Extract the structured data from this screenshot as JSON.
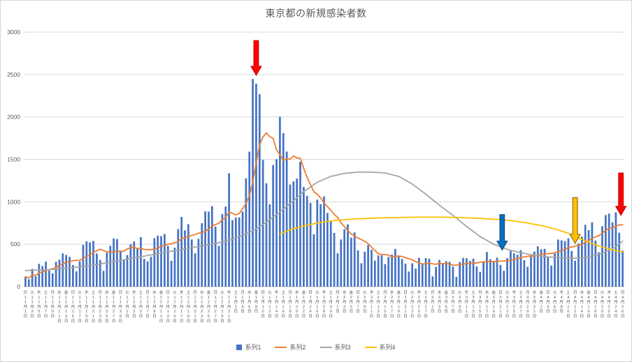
{
  "chart_data": {
    "type": "bar",
    "title": "東京都の新規感染者数",
    "ylim": [
      0,
      3000
    ],
    "y_ticks": [
      0,
      500,
      1000,
      1500,
      2000,
      2500,
      3000
    ],
    "n_days": 177,
    "x_tick_every": 2,
    "grid": true,
    "legend_position": "bottom",
    "x_tick_labels": [
      "日11月1日",
      "火11月3日",
      "木11月5日",
      "土11月7日",
      "月11月9日",
      "水11月11日",
      "金11月13日",
      "日11月15日",
      "火11月17日",
      "木11月19日",
      "土11月21日",
      "月11月23日",
      "水11月25日",
      "金11月27日",
      "日11月29日",
      "火12月1日",
      "木12月3日",
      "土12月5日",
      "月12月7日",
      "水12月9日",
      "金12月11日",
      "日12月13日",
      "火12月15日",
      "木12月17日",
      "土12月19日",
      "月12月21日",
      "水12月23日",
      "金12月25日",
      "日12月27日",
      "火12月29日",
      "木12月31日",
      "土1月2日",
      "月1月4日",
      "水1月6日",
      "金1月8日",
      "日1月10日",
      "火1月12日",
      "木1月14日",
      "土1月16日",
      "月1月18日",
      "水1月20日",
      "金1月22日",
      "日1月24日",
      "火1月26日",
      "木1月28日",
      "土1月30日",
      "月2月1日",
      "水2月3日",
      "金2月5日",
      "日2月7日",
      "火2月9日",
      "木2月11日",
      "土2月13日",
      "月2月15日",
      "水2月17日",
      "金2月19日",
      "日2月21日",
      "火2月23日",
      "木2月25日",
      "土2月27日",
      "月3月1日",
      "水3月3日",
      "金3月5日",
      "日3月7日",
      "火3月9日",
      "木3月11日",
      "土3月13日",
      "月3月15日",
      "水3月17日",
      "金3月19日",
      "日3月21日",
      "火3月23日",
      "木3月25日",
      "土3月27日",
      "月3月29日",
      "水3月31日",
      "金4月2日",
      "日4月4日",
      "火4月6日",
      "木4月8日",
      "土4月10日",
      "月4月12日",
      "水4月14日",
      "金4月16日",
      "日4月18日",
      "火4月20日",
      "木4月22日",
      "土4月24日",
      "月4月26日"
    ],
    "series": [
      {
        "name": "系列1",
        "type": "bar",
        "color": "#4472C4",
        "values": [
          116,
          87,
          209,
          122,
          269,
          242,
          294,
          189,
          157,
          293,
          317,
          393,
          374,
          352,
          255,
          180,
          298,
          493,
          534,
          522,
          539,
          391,
          314,
          186,
          401,
          481,
          570,
          561,
          418,
          311,
          372,
          500,
          533,
          449,
          584,
          327,
          299,
          352,
          572,
          602,
          595,
          621,
          480,
          305,
          460,
          678,
          822,
          664,
          736,
          556,
          392,
          563,
          748,
          888,
          884,
          949,
          708,
          481,
          856,
          944,
          1337,
          783,
          814,
          816,
          884,
          1278,
          1591,
          2447,
          2392,
          2268,
          1494,
          1219,
          970,
          1433,
          1502,
          2001,
          1809,
          1592,
          1204,
          1240,
          1274,
          1471,
          1175,
          1070,
          986,
          618,
          1026,
          973,
          1064,
          868,
          769,
          633,
          393,
          556,
          676,
          734,
          577,
          639,
          429,
          276,
          412,
          491,
          434,
          307,
          369,
          371,
          266,
          350,
          378,
          445,
          353,
          327,
          272,
          178,
          275,
          213,
          340,
          270,
          337,
          329,
          121,
          232,
          316,
          279,
          301,
          293,
          237,
          116,
          290,
          340,
          335,
          304,
          330,
          239,
          175,
          300,
          409,
          323,
          303,
          342,
          256,
          187,
          337,
          420,
          394,
          376,
          430,
          313,
          234,
          364,
          414,
          475,
          440,
          446,
          355,
          249,
          399,
          555,
          545,
          537,
          570,
          421,
          306,
          510,
          591,
          729,
          667,
          759,
          543,
          405,
          711,
          843,
          861,
          759,
          876,
          635,
          425
        ]
      },
      {
        "name": "系列2",
        "type": "line",
        "color": "#ED7D31",
        "values": [
          116,
          102,
          137,
          134,
          161,
          174,
          191,
          202,
          212,
          224,
          252,
          269,
          288,
          296,
          306,
          309,
          310,
          335,
          355,
          376,
          403,
          422,
          442,
          426,
          412,
          405,
          412,
          415,
          419,
          418,
          445,
          459,
          466,
          449,
          452,
          439,
          438,
          435,
          445,
          455,
          476,
          481,
          503,
          504,
          519,
          534,
          566,
          576,
          592,
          603,
          615,
          630,
          640,
          650,
          681,
          711,
          733,
          746,
          788,
          816,
          880,
          865,
          846,
          862,
          919,
          979,
          1072,
          1230,
          1460,
          1668,
          1765,
          1813,
          1769,
          1746,
          1611,
          1555,
          1490,
          1504,
          1502,
          1540,
          1517,
          1513,
          1395,
          1289,
          1203,
          1119,
          1089,
          1046,
          987,
          944,
          901,
          850,
          818,
          751,
          708,
          661,
          620,
          601,
          572,
          555,
          535,
          508,
          465,
          427,
          388,
          380,
          379,
          370,
          354,
          355,
          362,
          356,
          342,
          329,
          318,
          295,
          280,
          268,
          269,
          277,
          269,
          263,
          278,
          269,
          274,
          267,
          254,
          253,
          262,
          265,
          273,
          274,
          279,
          279,
          288,
          289,
          299,
          297,
          297,
          299,
          301,
          303,
          308,
          310,
          320,
          330,
          343,
          351,
          358,
          362,
          361,
          372,
          381,
          384,
          390,
          392,
          397,
          417,
          427,
          441,
          459,
          468,
          476,
          492,
          497,
          523,
          542,
          569,
          586,
          601,
          629,
          665,
          684,
          697,
          714,
          727,
          730
        ]
      },
      {
        "name": "系列3",
        "type": "line",
        "color": "#A5A5A5",
        "points": [
          [
            0,
            190
          ],
          [
            7,
            200
          ],
          [
            14,
            225
          ],
          [
            21,
            260
          ],
          [
            28,
            310
          ],
          [
            35,
            360
          ],
          [
            42,
            410
          ],
          [
            49,
            460
          ],
          [
            56,
            510
          ],
          [
            61,
            560
          ],
          [
            65,
            620
          ],
          [
            68,
            680
          ],
          [
            71,
            760
          ],
          [
            75,
            880
          ],
          [
            78,
            980
          ],
          [
            82,
            1120
          ],
          [
            86,
            1230
          ],
          [
            90,
            1300
          ],
          [
            94,
            1335
          ],
          [
            98,
            1350
          ],
          [
            102,
            1350
          ],
          [
            106,
            1340
          ],
          [
            110,
            1300
          ],
          [
            114,
            1210
          ],
          [
            118,
            1090
          ],
          [
            122,
            960
          ],
          [
            126,
            840
          ],
          [
            130,
            710
          ],
          [
            134,
            590
          ],
          [
            138,
            500
          ],
          [
            142,
            440
          ],
          [
            146,
            400
          ],
          [
            150,
            370
          ],
          [
            154,
            350
          ],
          [
            158,
            340
          ],
          [
            162,
            335
          ],
          [
            165,
            345
          ],
          [
            168,
            370
          ],
          [
            171,
            410
          ],
          [
            174,
            470
          ],
          [
            176,
            535
          ]
        ]
      },
      {
        "name": "系列4",
        "type": "line",
        "color": "#FFC000",
        "points": [
          [
            75,
            620
          ],
          [
            78,
            670
          ],
          [
            82,
            715
          ],
          [
            86,
            750
          ],
          [
            90,
            775
          ],
          [
            94,
            790
          ],
          [
            98,
            800
          ],
          [
            104,
            810
          ],
          [
            110,
            815
          ],
          [
            116,
            820
          ],
          [
            122,
            820
          ],
          [
            128,
            815
          ],
          [
            134,
            805
          ],
          [
            140,
            790
          ],
          [
            144,
            775
          ],
          [
            148,
            750
          ],
          [
            152,
            720
          ],
          [
            156,
            680
          ],
          [
            160,
            630
          ],
          [
            163,
            575
          ],
          [
            166,
            525
          ],
          [
            169,
            480
          ],
          [
            172,
            445
          ],
          [
            174,
            425
          ],
          [
            176,
            410
          ]
        ]
      }
    ],
    "annotations": [
      {
        "shape": "down-arrow",
        "fill": "#FF0000",
        "outline": "#C00000",
        "day": 68,
        "tip_value": 2490,
        "tail_value": 2900
      },
      {
        "shape": "down-arrow",
        "fill": "#0070C0",
        "outline": "#1F4E79",
        "day": 140.5,
        "tip_value": 430,
        "tail_value": 850
      },
      {
        "shape": "down-arrow",
        "fill": "#FFC000",
        "outline": "#7F6000",
        "day": 162,
        "tip_value": 510,
        "tail_value": 1050
      },
      {
        "shape": "down-arrow",
        "fill": "#FF0000",
        "outline": "#C00000",
        "day": 175.5,
        "tip_value": 840,
        "tail_value": 1340
      }
    ],
    "legend": [
      {
        "label": "系列1",
        "marker": "square",
        "color": "#4472C4"
      },
      {
        "label": "系列2",
        "marker": "line",
        "color": "#ED7D31"
      },
      {
        "label": "系列3",
        "marker": "line",
        "color": "#A5A5A5"
      },
      {
        "label": "系列4",
        "marker": "line",
        "color": "#FFC000"
      }
    ],
    "colors": {
      "grid": "#D9D9D9",
      "axis": "#BFBFBF",
      "tick_text": "#595959",
      "title_text": "#595959"
    }
  }
}
